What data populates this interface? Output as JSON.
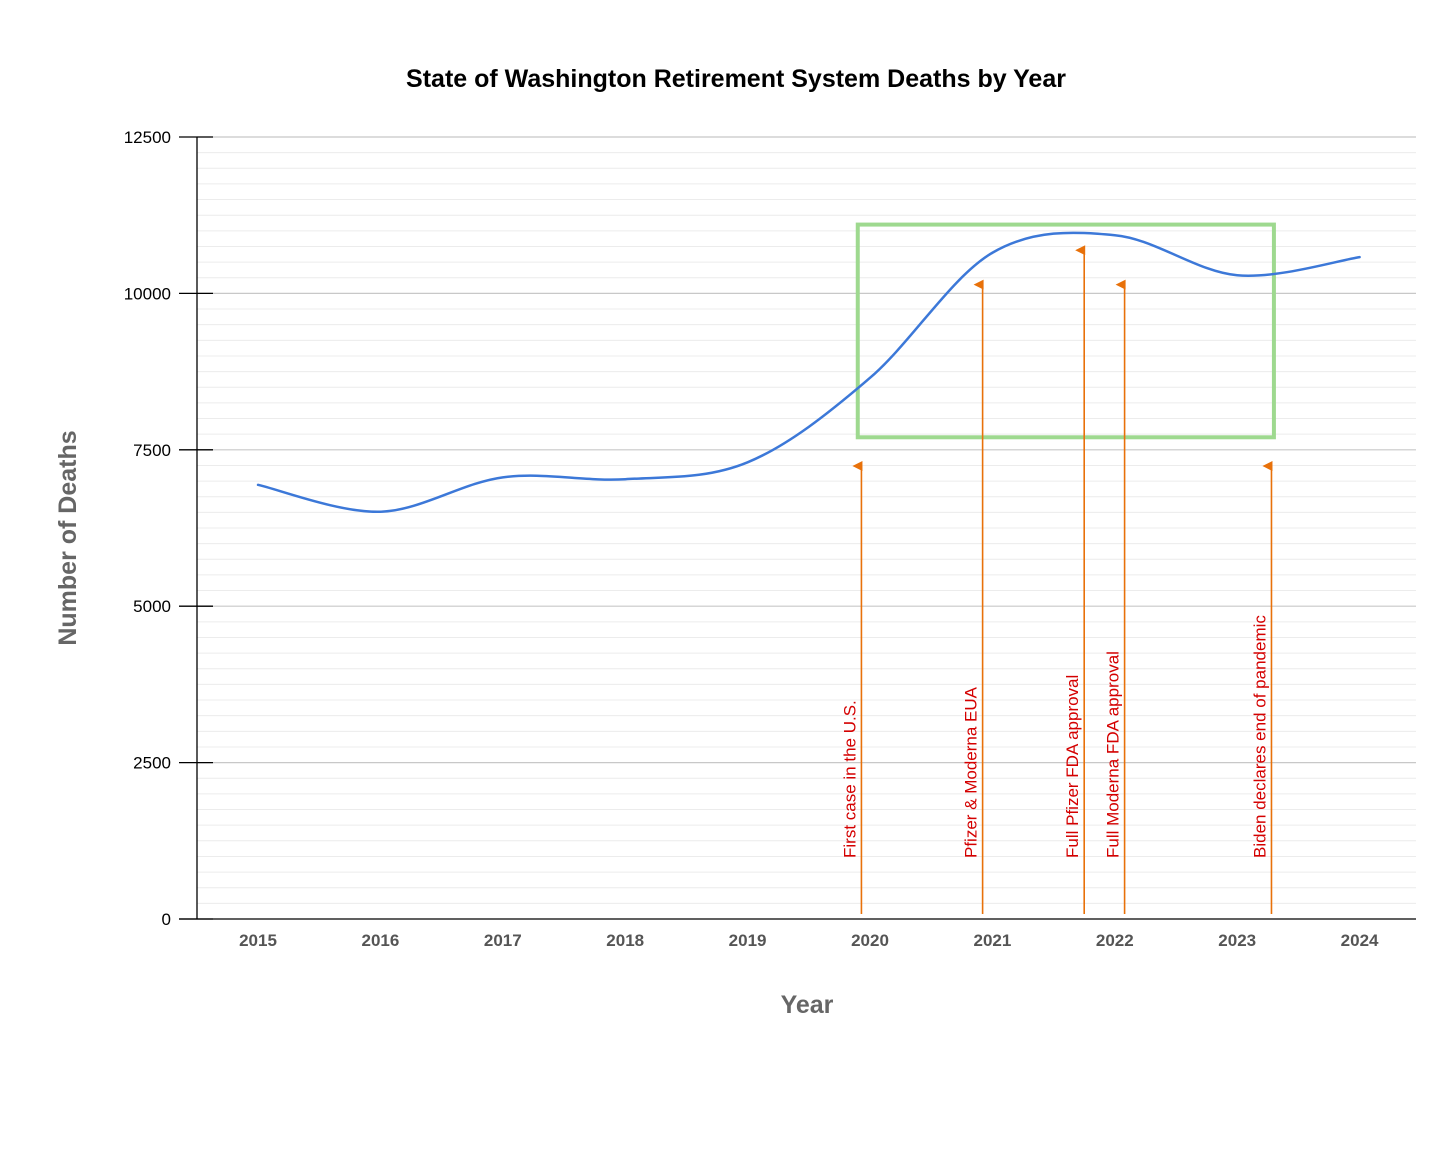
{
  "chart_data": {
    "type": "line",
    "title": "State of Washington Retirement System Deaths by Year",
    "xlabel": "Year",
    "ylabel": "Number of Deaths",
    "x": [
      "2015",
      "2016",
      "2017",
      "2018",
      "2019",
      "2020",
      "2021",
      "2022",
      "2023",
      "2024"
    ],
    "series": [
      {
        "values": [
          6940,
          6510,
          7060,
          7030,
          7300,
          8650,
          10650,
          10930,
          10290,
          10580
        ]
      }
    ],
    "ylim": [
      0,
      12500
    ],
    "yticks": [
      "0",
      "2500",
      "5000",
      "7500",
      "10000",
      "12500"
    ],
    "grid": true,
    "legend": "none",
    "highlight_box": {
      "x_start": 2019.9,
      "x_end": 2023.3,
      "y_start": 7700,
      "y_end": 11100
    },
    "annotations": [
      {
        "label": "First case in the U.S.",
        "x": 2019.93,
        "arrow_top": 7400
      },
      {
        "label": "Pfizer & Moderna EUA",
        "x": 2020.92,
        "arrow_top": 10300
      },
      {
        "label": "Full Pfizer FDA approval",
        "x": 2021.75,
        "arrow_top": 10850
      },
      {
        "label": "Full Moderna FDA approval",
        "x": 2022.08,
        "arrow_top": 10300
      },
      {
        "label": "Biden declares end of pandemic",
        "x": 2023.28,
        "arrow_top": 7400
      }
    ],
    "colors": {
      "line": "#3c78d8",
      "box": "#9ed98f",
      "arrow": "#e8710a",
      "annotation_text": "#d40000"
    }
  }
}
